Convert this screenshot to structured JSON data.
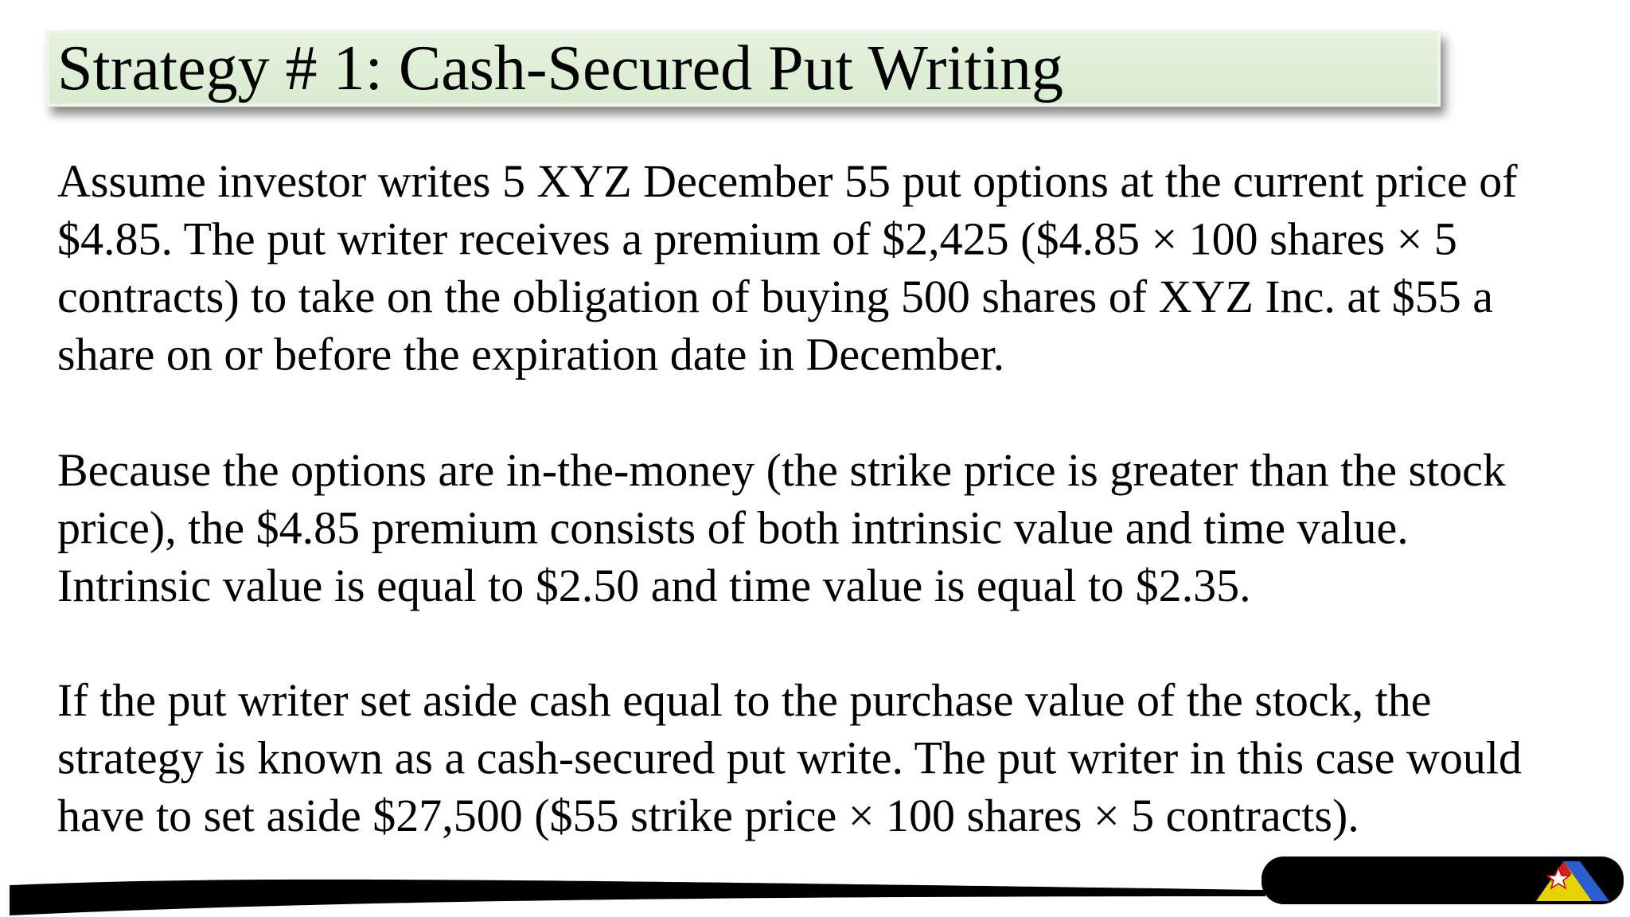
{
  "header": {
    "title": "Strategy # 1: Cash-Secured Put Writing"
  },
  "paragraphs": [
    {
      "lines": [
        "Assume investor writes 5 XYZ December 55 put options at the current price of",
        "$4.85. The put writer receives a premium of $2,425 ($4.85 × 100 shares × 5",
        "contracts) to take on the obligation of buying 500 shares of XYZ Inc. at $55 a",
        "share on or before the expiration date in December."
      ]
    },
    {
      "lines": [
        "Because the options are in-the-money (the strike price is greater than the stock",
        "price), the $4.85 premium consists of both intrinsic value and time value.",
        "Intrinsic value is equal to $2.50 and time value is equal to $2.35."
      ]
    },
    {
      "lines": [
        "If the put writer set aside cash equal to the purchase value of the stock, the",
        "strategy is known as a cash-secured put write. The put writer in this case would",
        "have to set aside $27,500 ($55 strike price × 100 shares × 5 contracts)."
      ]
    }
  ]
}
